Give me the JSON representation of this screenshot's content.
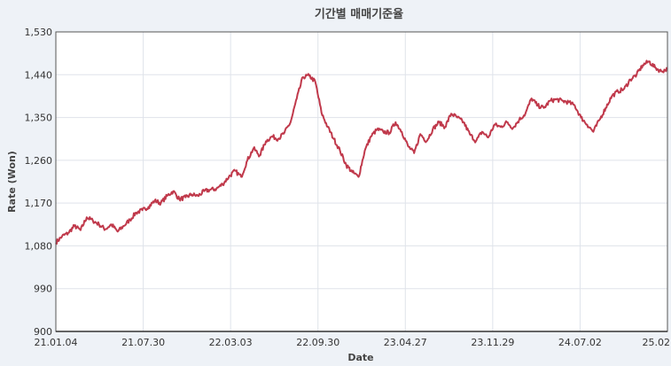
{
  "chart_data": {
    "type": "line",
    "title": "기간별 매매기준율",
    "xlabel": "Date",
    "ylabel": "Rate (Won)",
    "ylim": [
      900,
      1530
    ],
    "yticks": [
      "1,530",
      "1,440",
      "1,350",
      "1,260",
      "1,170",
      "1,080",
      "990",
      "900"
    ],
    "ytick_values": [
      1530,
      1440,
      1350,
      1260,
      1170,
      1080,
      990,
      900
    ],
    "xticks": [
      "21.01.04",
      "21.07.30",
      "22.03.03",
      "22.09.30",
      "23.04.27",
      "23.11.29",
      "24.07.02",
      "25.02"
    ],
    "grid": true,
    "legend": "none",
    "line_color": "#c0394b",
    "series": [
      {
        "x": [
          0,
          0.5,
          1,
          1.5,
          2,
          2.5,
          3,
          3.5,
          4,
          4.5,
          5,
          5.5,
          6,
          6.5,
          7,
          7.5,
          8,
          8.5,
          9,
          9.5,
          10,
          10.5,
          11,
          11.5,
          12,
          12.5,
          13,
          13.5,
          14,
          14.5,
          15,
          15.5,
          16,
          16.5,
          17,
          17.5,
          18,
          18.5,
          19,
          19.5,
          20,
          20.5,
          21,
          21.5,
          22,
          22.5,
          23,
          23.5,
          24,
          24.5,
          25,
          25.5,
          26,
          26.5,
          27,
          27.5,
          28,
          28.5,
          29,
          29.5,
          30,
          30.5,
          31,
          31.5,
          32,
          32.5,
          33,
          33.5,
          34,
          34.5,
          35,
          35.5,
          36,
          36.5,
          37,
          37.5,
          38,
          38.5,
          39,
          39.5,
          40,
          40.5,
          41,
          41.5,
          42,
          42.5,
          43,
          43.5,
          44,
          44.5,
          45,
          45.5,
          46,
          46.5,
          47,
          47.5,
          48,
          48.5,
          49,
          49.5
        ],
        "values": [
          1087,
          1100,
          1107,
          1122,
          1113,
          1140,
          1133,
          1125,
          1115,
          1125,
          1110,
          1122,
          1135,
          1150,
          1155,
          1162,
          1175,
          1170,
          1185,
          1195,
          1178,
          1182,
          1188,
          1185,
          1195,
          1198,
          1200,
          1210,
          1225,
          1238,
          1225,
          1260,
          1285,
          1270,
          1300,
          1310,
          1305,
          1318,
          1340,
          1390,
          1435,
          1438,
          1425,
          1360,
          1330,
          1305,
          1280,
          1250,
          1235,
          1225,
          1280,
          1310,
          1325,
          1320,
          1318,
          1340,
          1320,
          1290,
          1275,
          1315,
          1300,
          1325,
          1340,
          1330,
          1358,
          1350,
          1340,
          1315,
          1300,
          1320,
          1308,
          1335,
          1330,
          1340,
          1328,
          1345,
          1358,
          1390,
          1375,
          1370,
          1385,
          1388,
          1385,
          1382,
          1375,
          1350,
          1335,
          1320,
          1345,
          1370,
          1395,
          1405,
          1410,
          1430,
          1440,
          1460,
          1468,
          1455,
          1447,
          1452
        ]
      }
    ]
  }
}
